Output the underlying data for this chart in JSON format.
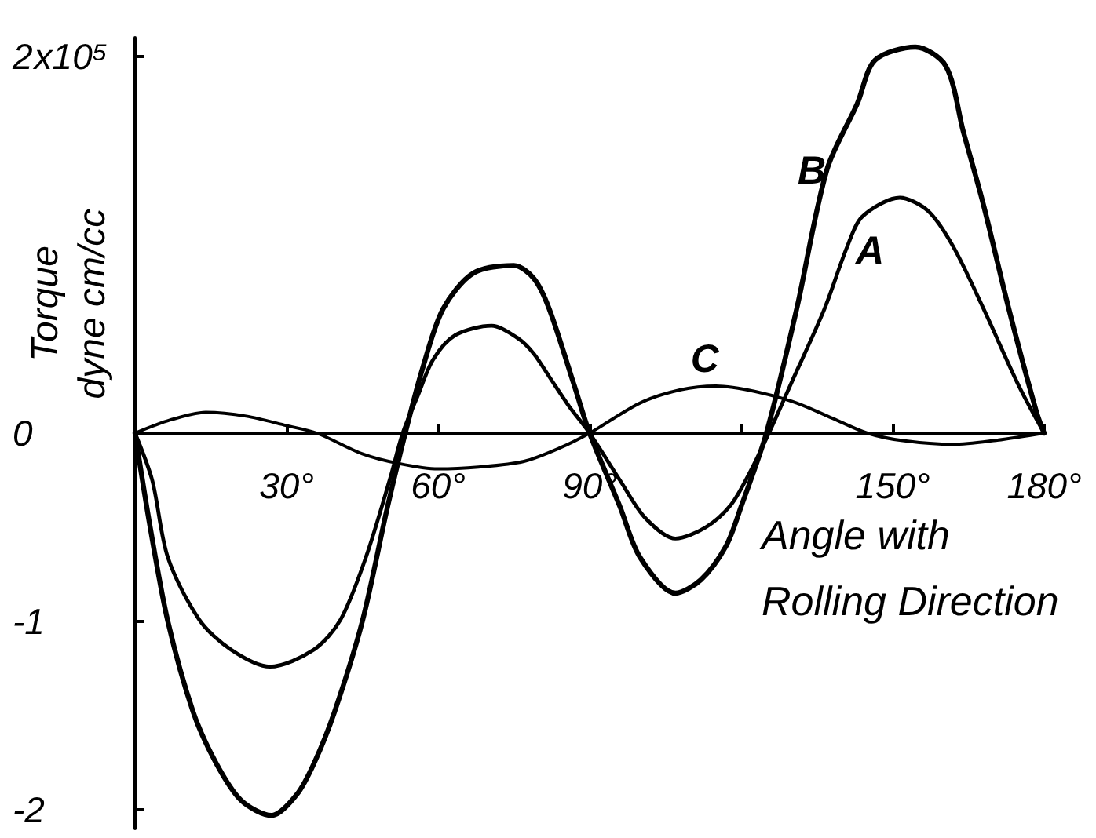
{
  "chart_data": {
    "type": "line",
    "xlabel": "Angle with\nRolling Direction",
    "ylabel": "Torque\ndyne cm/cc",
    "annotations": [
      "x10⁵"
    ],
    "xlim": [
      0,
      180
    ],
    "xticks": [
      {
        "value": 30,
        "label": "30°"
      },
      {
        "value": 60,
        "label": "60°"
      },
      {
        "value": 90,
        "label": "90°"
      },
      {
        "value": 120,
        "label": null
      },
      {
        "value": 150,
        "label": "150°"
      },
      {
        "value": 180,
        "label": "180°"
      }
    ],
    "ylim": [
      -2.1,
      2.1
    ],
    "yticks": [
      -2,
      -1,
      0,
      2
    ],
    "marker": "none",
    "series": [
      {
        "name": "A",
        "color": "#000000",
        "x": [
          0,
          3.4,
          6.5,
          12.7,
          19,
          26.7,
          35.4,
          40.7,
          45.7,
          50.4,
          53,
          56,
          59,
          63.4,
          70.6,
          76,
          79,
          82,
          86,
          90,
          96,
          101,
          107,
          113,
          118,
          121.5,
          125.5,
          130,
          136.5,
          141,
          144,
          151.4,
          157,
          162,
          168,
          175,
          180
        ],
        "values": [
          0,
          -0.25,
          -0.66,
          -0.99,
          -1.15,
          -1.24,
          -1.15,
          -0.99,
          -0.66,
          -0.25,
          0,
          0.2,
          0.39,
          0.52,
          0.57,
          0.5,
          0.42,
          0.3,
          0.14,
          0,
          -0.25,
          -0.45,
          -0.56,
          -0.5,
          -0.38,
          -0.22,
          0,
          0.27,
          0.66,
          0.99,
          1.15,
          1.25,
          1.18,
          0.99,
          0.66,
          0.25,
          0
        ]
      },
      {
        "name": "B",
        "color": "#000000",
        "x": [
          0,
          3,
          6.5,
          11.5,
          16,
          21,
          27,
          32,
          35.5,
          39.5,
          45,
          50,
          53.5,
          57,
          61,
          67,
          75,
          79,
          82,
          87,
          90,
          96,
          100,
          107,
          112,
          117,
          120,
          125,
          131,
          137,
          143,
          146.5,
          154.5,
          160.5,
          164,
          168,
          173,
          178.5,
          180
        ],
        "values": [
          0,
          -0.5,
          -1.0,
          -1.48,
          -1.75,
          -1.95,
          -2.03,
          -1.92,
          -1.75,
          -1.48,
          -1.0,
          -0.39,
          0,
          0.35,
          0.66,
          0.85,
          0.89,
          0.82,
          0.66,
          0.25,
          0,
          -0.39,
          -0.66,
          -0.85,
          -0.78,
          -0.6,
          -0.39,
          0,
          0.66,
          1.4,
          1.75,
          1.98,
          2.05,
          1.95,
          1.6,
          1.21,
          0.66,
          0.11,
          0
        ]
      },
      {
        "name": "C",
        "color": "#000000",
        "x": [
          0,
          7,
          14,
          22,
          30,
          36,
          45,
          52,
          60,
          68,
          77,
          84,
          90,
          100,
          108,
          115,
          123,
          131,
          138,
          145,
          152,
          162,
          170,
          180
        ],
        "values": [
          0,
          0.07,
          0.11,
          0.09,
          0.04,
          0,
          -0.11,
          -0.16,
          -0.19,
          -0.18,
          -0.15,
          -0.08,
          0,
          0.16,
          0.23,
          0.25,
          0.22,
          0.16,
          0.08,
          0,
          -0.04,
          -0.06,
          -0.04,
          0
        ]
      }
    ]
  }
}
